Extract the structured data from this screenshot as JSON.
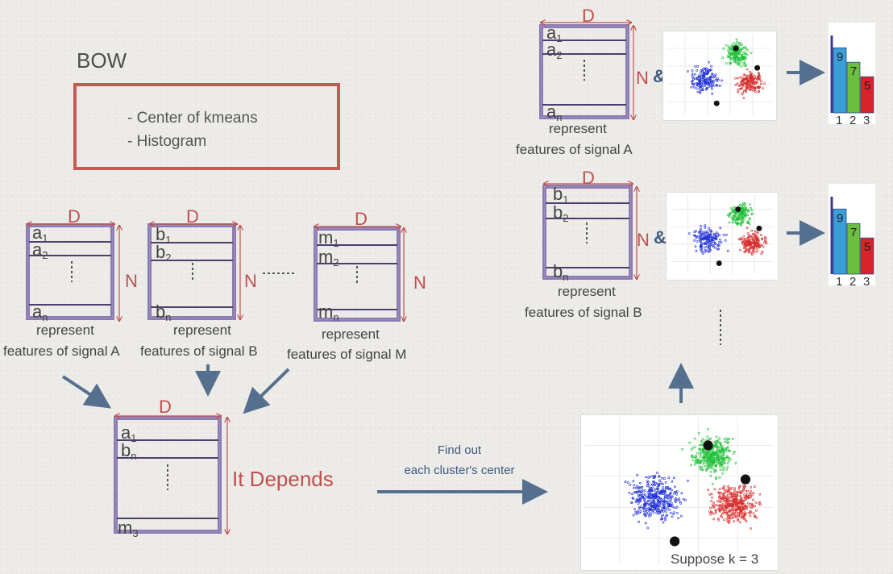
{
  "title": "BOW",
  "bullets": [
    "- Center of kmeans",
    "- Histogram"
  ],
  "dims": {
    "D": "D",
    "N": "N"
  },
  "dots": "· · · ·",
  "matrices": {
    "A": {
      "first": "a",
      "first_sub": "1",
      "second": "a",
      "second_sub": "2",
      "last": "a",
      "last_sub": "n",
      "cap1": "represent",
      "cap2": "features of signal A"
    },
    "B": {
      "first": "b",
      "first_sub": "1",
      "second": "b",
      "second_sub": "2",
      "last": "b",
      "last_sub": "n",
      "cap1": "represent",
      "cap2": "features of signal B"
    },
    "M": {
      "first": "m",
      "first_sub": "1",
      "second": "m",
      "second_sub": "2",
      "last": "m",
      "last_sub": "n",
      "cap1": "represent",
      "cap2": "features of signal M"
    },
    "Combined": {
      "first": "a",
      "first_sub": "1",
      "second": "b",
      "second_sub": "n",
      "last": "m",
      "last_sub": "3"
    }
  },
  "it_depends": "It Depends",
  "find_out": {
    "line1": "Find out",
    "line2": "each cluster's center"
  },
  "suppose_k": "Suppose k = 3",
  "amp": "&",
  "histograms": [
    {
      "values": [
        9,
        7,
        5
      ],
      "labels": [
        "1",
        "2",
        "3"
      ]
    },
    {
      "values": [
        9,
        7,
        5
      ],
      "labels": [
        "1",
        "2",
        "3"
      ]
    }
  ],
  "colors": {
    "accent_red": "#c0504d",
    "matrix_border": "#8c7bb0",
    "arrow": "#556f8f",
    "bar_blue": "#3a9fd8",
    "bar_green": "#6cbf3c",
    "bar_red": "#d8232a"
  }
}
